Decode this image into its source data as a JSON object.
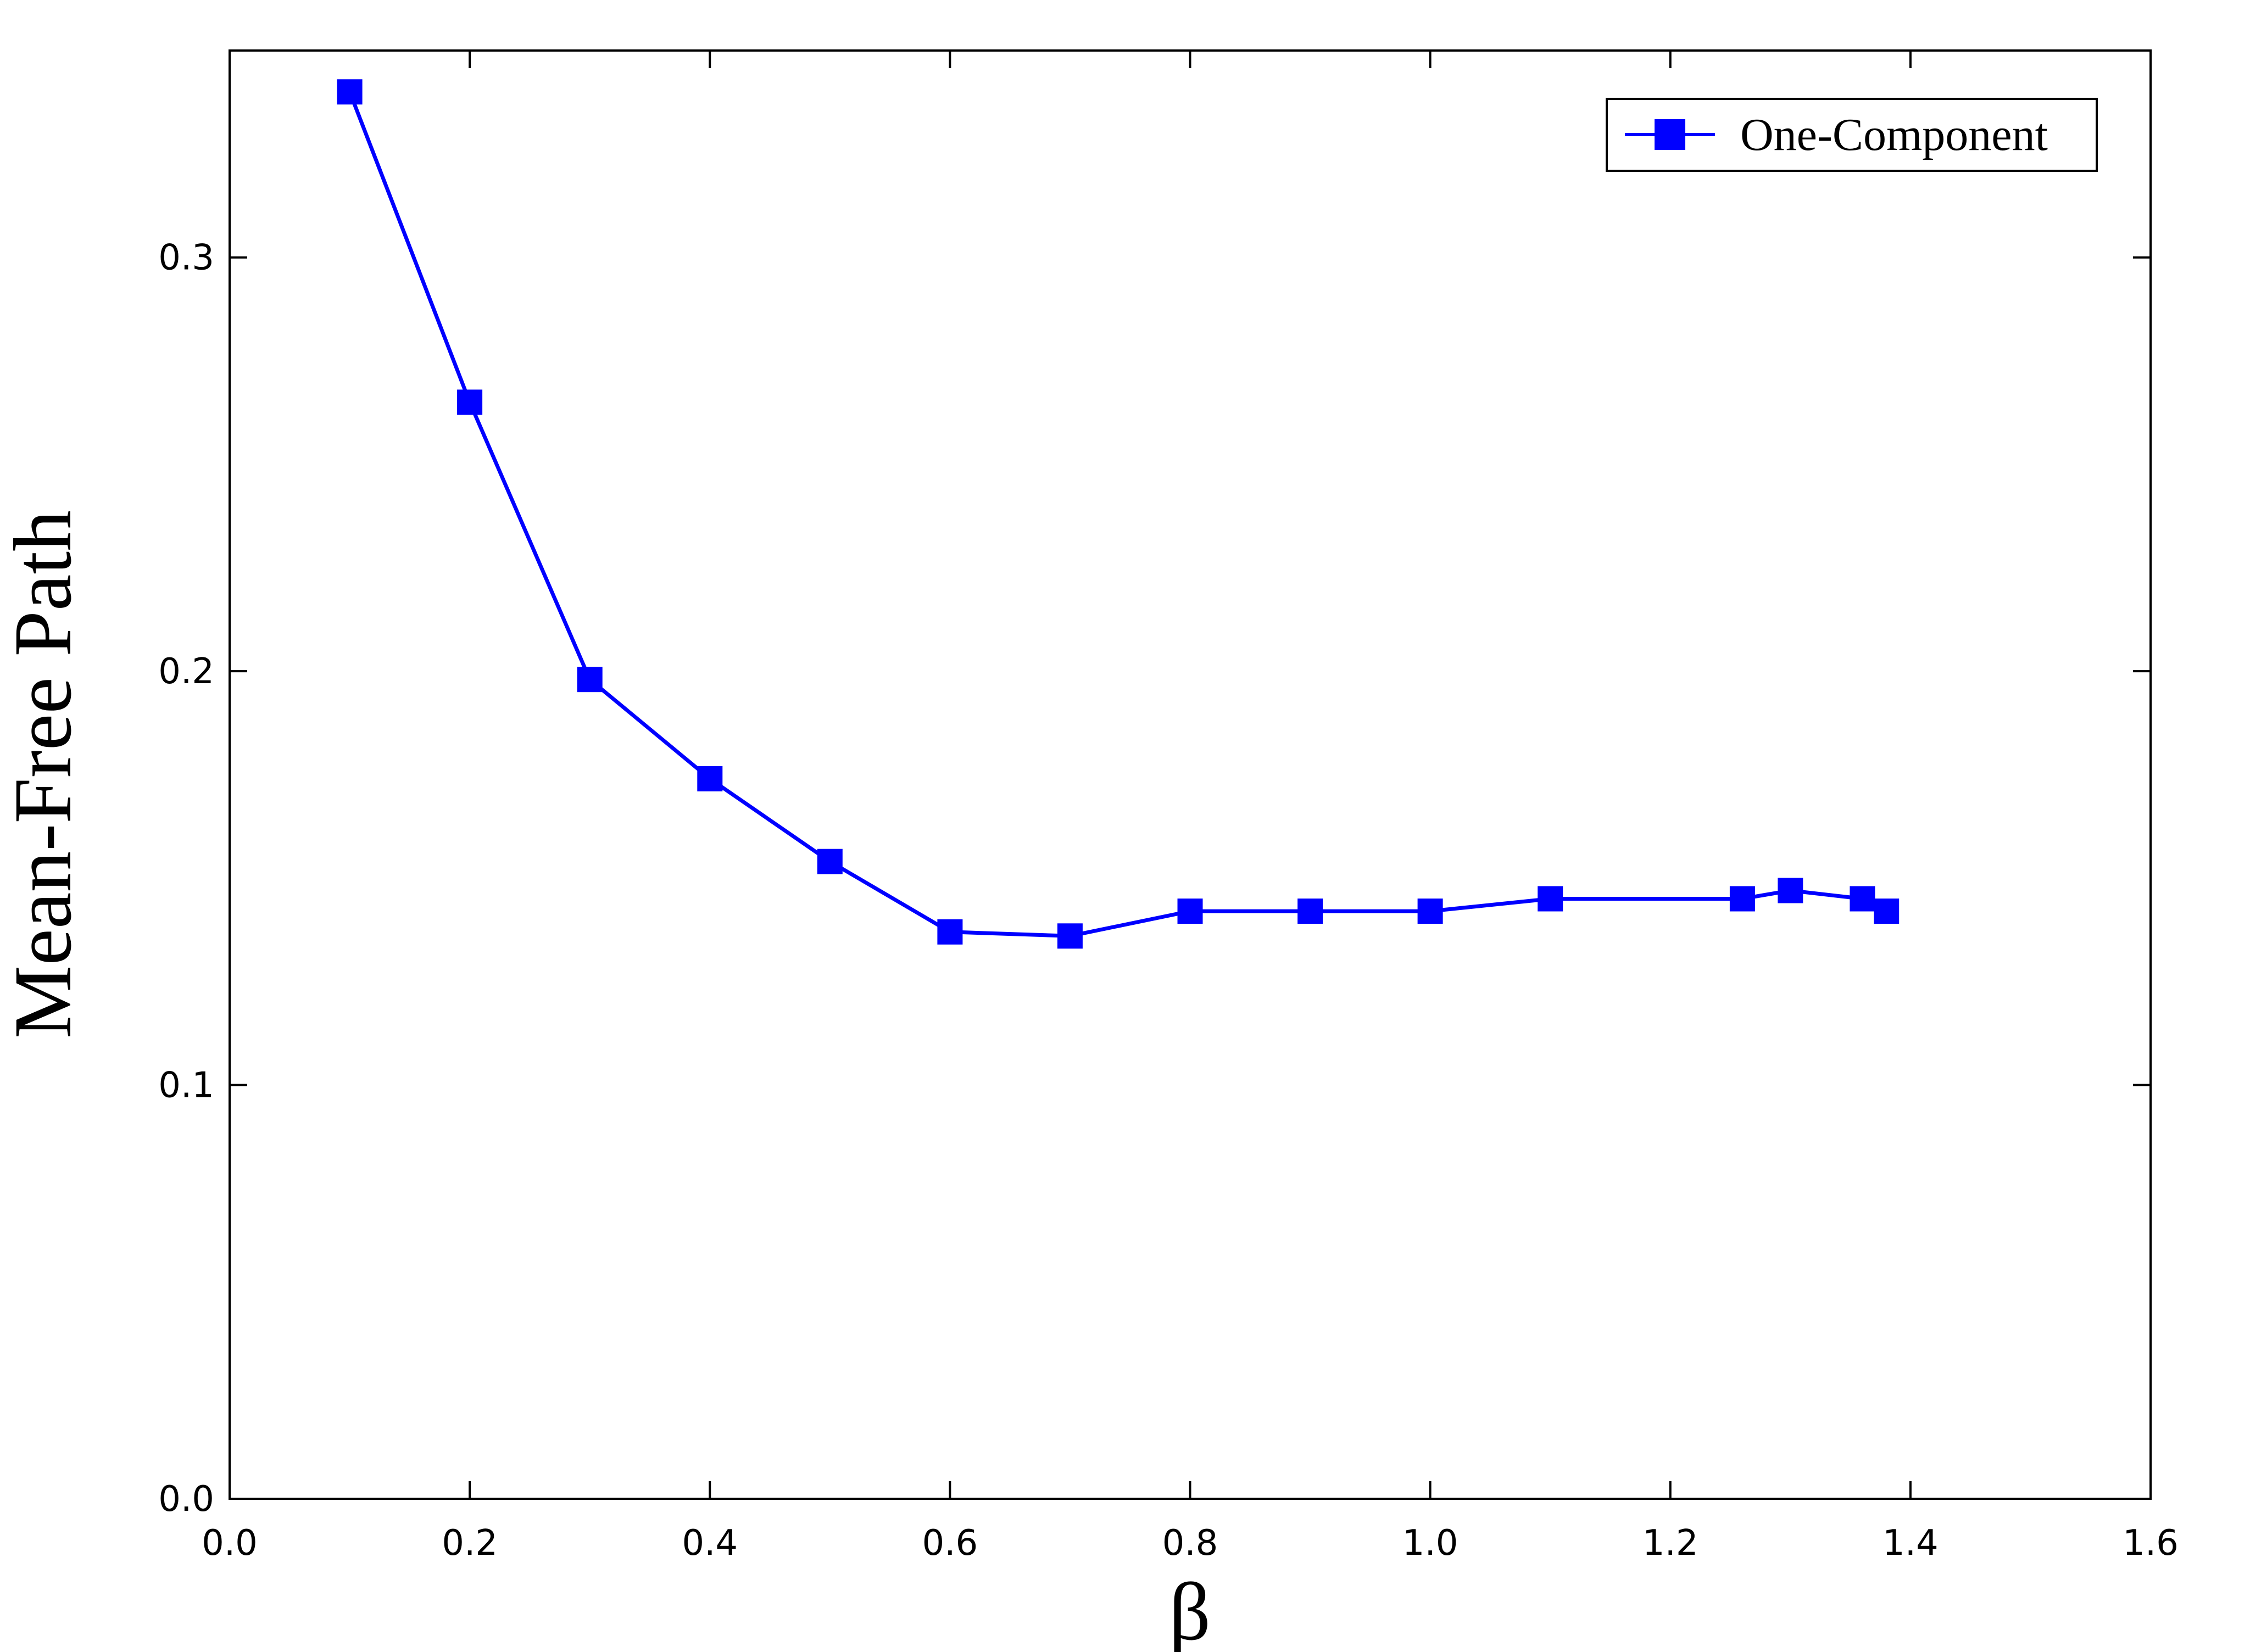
{
  "chart_data": {
    "type": "line",
    "title": "",
    "xlabel": "β",
    "ylabel": "Mean-Free Path",
    "xlim": [
      0.0,
      1.6
    ],
    "ylim": [
      0.0,
      0.35
    ],
    "xticks": [
      "0.0",
      "0.2",
      "0.4",
      "0.6",
      "0.8",
      "1.0",
      "1.2",
      "1.4",
      "1.6"
    ],
    "yticks": [
      "0.0",
      "0.1",
      "0.2",
      "0.3"
    ],
    "grid": false,
    "legend_position": "top-right",
    "series": [
      {
        "name": "One-Component",
        "color": "#0000ff",
        "marker": "square",
        "x": [
          0.1,
          0.2,
          0.3,
          0.4,
          0.5,
          0.6,
          0.7,
          0.8,
          0.9,
          1.0,
          1.1,
          1.26,
          1.3,
          1.36,
          1.38
        ],
        "y": [
          0.34,
          0.265,
          0.198,
          0.174,
          0.154,
          0.137,
          0.136,
          0.142,
          0.142,
          0.142,
          0.145,
          0.145,
          0.147,
          0.145,
          0.142
        ]
      }
    ]
  }
}
